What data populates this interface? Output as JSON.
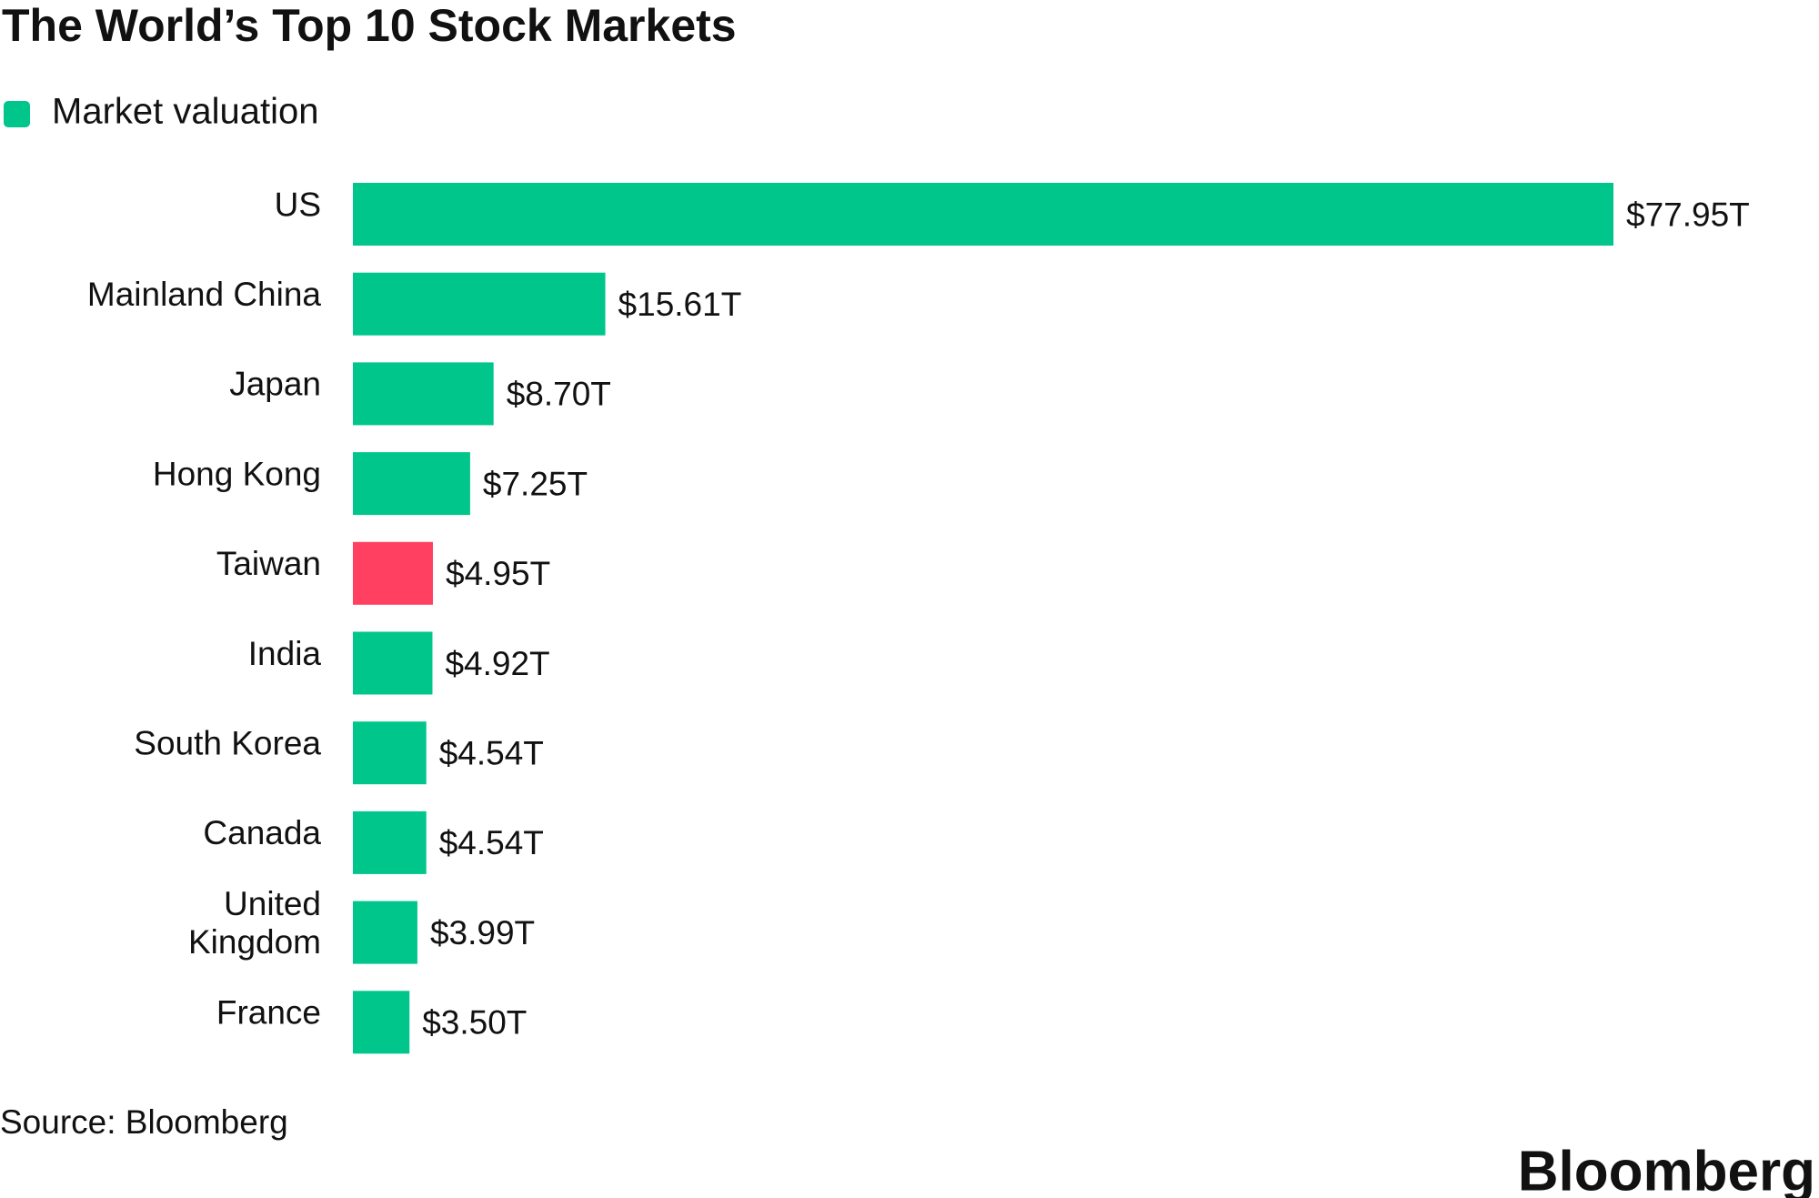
{
  "chart_data": {
    "type": "bar",
    "orientation": "horizontal",
    "title": "The World’s Top 10 Stock Markets",
    "categories": [
      "US",
      "Mainland China",
      "Japan",
      "Hong Kong",
      "Taiwan",
      "India",
      "South Korea",
      "Canada",
      "United Kingdom",
      "France"
    ],
    "series": [
      {
        "name": "Market valuation",
        "color": "#00c68b",
        "values": [
          77.95,
          15.61,
          8.7,
          7.25,
          4.95,
          4.92,
          4.54,
          4.54,
          3.99,
          3.5
        ],
        "value_labels": [
          "$77.95T",
          "$15.61T",
          "$8.70T",
          "$7.25T",
          "$4.95T",
          "$4.92T",
          "$4.54T",
          "$4.54T",
          "$3.99T",
          "$3.50T"
        ],
        "point_colors": [
          "#00c68b",
          "#00c68b",
          "#00c68b",
          "#00c68b",
          "#ff4060",
          "#00c68b",
          "#00c68b",
          "#00c68b",
          "#00c68b",
          "#00c68b"
        ]
      }
    ],
    "legend": "top-left",
    "source": "Source: Bloomberg"
  },
  "logo": "Bloomberg"
}
